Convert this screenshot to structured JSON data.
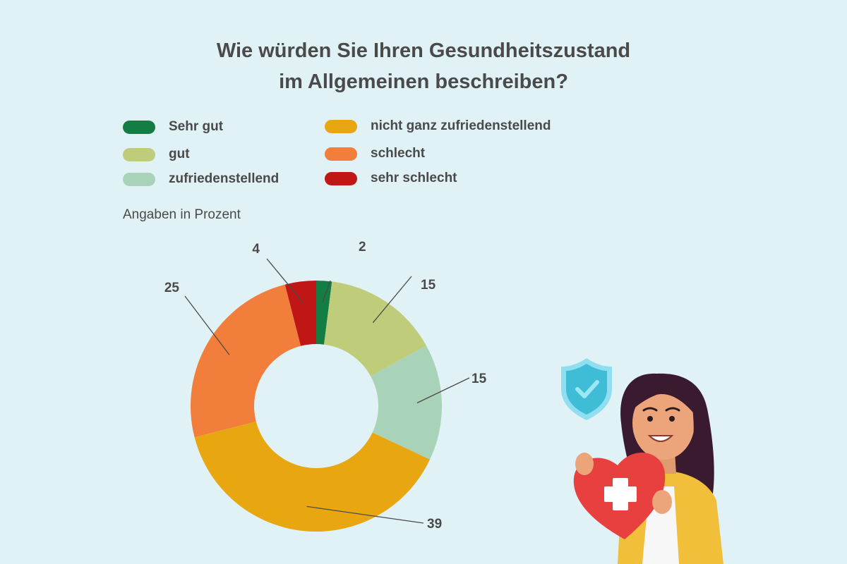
{
  "chart_data": {
    "type": "pie",
    "variant": "donut",
    "title_line1": "Wie würden Sie Ihren Gesundheitszustand",
    "title_line2": "im Allgemeinen beschreiben?",
    "subtitle": "Angaben in Prozent",
    "categories": [
      "Sehr gut",
      "gut",
      "zufriedenstellend",
      "nicht ganz zufriedenstellend",
      "schlecht",
      "sehr schlecht"
    ],
    "values": [
      2,
      15,
      15,
      39,
      25,
      4
    ],
    "value_labels": [
      "2",
      "15",
      "15",
      "39",
      "25",
      "4"
    ],
    "colors": [
      "#137d43",
      "#bfcd7b",
      "#a9d3b9",
      "#e8a611",
      "#f17e3b",
      "#c01616"
    ],
    "legend_placement": "top"
  },
  "illustration": {
    "description_icon": "woman-holding-heart-icon",
    "shield_icon": "shield-check-icon"
  }
}
